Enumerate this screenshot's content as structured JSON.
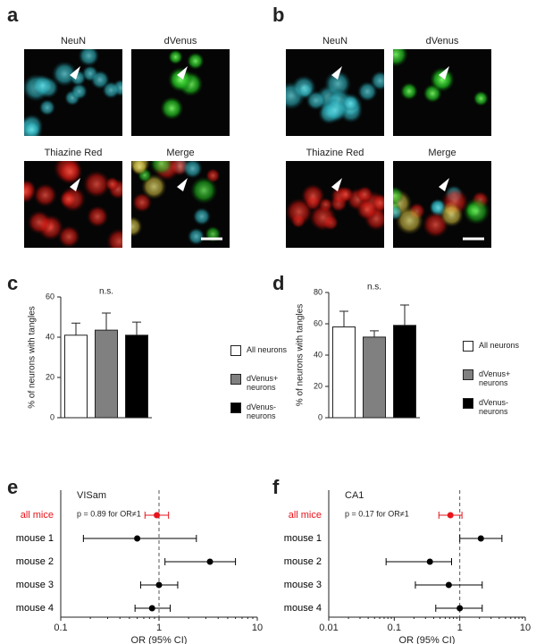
{
  "figure": {
    "panel_letters": [
      "a",
      "b",
      "c",
      "d",
      "e",
      "f"
    ],
    "image_labels": [
      [
        "NeuN",
        "dVenus",
        "Thiazine Red",
        "Merge"
      ],
      [
        "NeuN",
        "dVenus",
        "Thiazine Red",
        "Merge"
      ]
    ]
  },
  "chart_data": [
    {
      "type": "bar",
      "ylabel": "% of neurons with tangles",
      "annotation": "n.s.",
      "categories": [
        "All neurons",
        "dVenus+ neurons",
        "dVenus- neurons"
      ],
      "values": [
        41,
        43.5,
        41
      ],
      "errors": [
        6,
        8.5,
        6.5
      ],
      "colors": [
        "#ffffff",
        "#808080",
        "#000000"
      ],
      "ylim": [
        0,
        60
      ],
      "yticks": [
        0,
        20,
        40,
        60
      ]
    },
    {
      "type": "bar",
      "ylabel": "% of neurons with tangles",
      "annotation": "n.s.",
      "categories": [
        "All neurons",
        "dVenus+ neurons",
        "dVenus- neurons"
      ],
      "values": [
        58,
        51.5,
        59
      ],
      "errors": [
        10,
        4,
        13
      ],
      "colors": [
        "#ffffff",
        "#808080",
        "#000000"
      ],
      "ylim": [
        0,
        80
      ],
      "yticks": [
        0,
        20,
        40,
        60,
        80
      ]
    },
    {
      "type": "forest",
      "title": "VISam",
      "annotation": "p = 0.89 for OR≠1",
      "xlabel": "OR (95% CI)",
      "categories": [
        "all mice",
        "mouse 1",
        "mouse 2",
        "mouse 3",
        "mouse 4"
      ],
      "values": [
        0.95,
        0.6,
        3.3,
        1.0,
        0.85
      ],
      "lower": [
        0.72,
        0.17,
        1.15,
        0.65,
        0.57
      ],
      "upper": [
        1.25,
        2.4,
        6.0,
        1.55,
        1.3
      ],
      "colors": [
        "#e8141b",
        "#000000",
        "#000000",
        "#000000",
        "#000000"
      ],
      "xscale": "log",
      "xlim": [
        0.1,
        10
      ],
      "xticks": [
        0.1,
        1,
        10
      ],
      "reference_line": 1
    },
    {
      "type": "forest",
      "title": "CA1",
      "annotation": "p = 0.17 for OR≠1",
      "xlabel": "OR (95% CI)",
      "categories": [
        "all mice",
        "mouse 1",
        "mouse 2",
        "mouse 3",
        "mouse 4"
      ],
      "values": [
        0.72,
        2.1,
        0.35,
        0.68,
        1.0
      ],
      "lower": [
        0.48,
        1.0,
        0.075,
        0.21,
        0.43
      ],
      "upper": [
        1.08,
        4.4,
        0.75,
        2.2,
        2.2
      ],
      "colors": [
        "#e8141b",
        "#000000",
        "#000000",
        "#000000",
        "#000000"
      ],
      "xscale": "log",
      "xlim": [
        0.01,
        10
      ],
      "xticks": [
        0.01,
        0.1,
        1,
        10
      ],
      "reference_line": 1
    }
  ]
}
